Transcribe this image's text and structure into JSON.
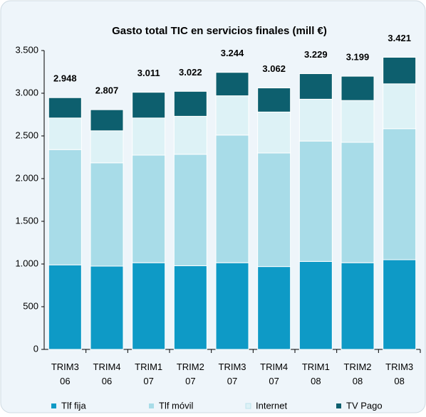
{
  "chart_data": {
    "type": "stacked_bar",
    "title": "Gasto total TIC en servicios finales (mill €)",
    "categories": [
      "TRIM3 06",
      "TRIM4 06",
      "TRIM1 07",
      "TRIM2 07",
      "TRIM3 07",
      "TRIM4 07",
      "TRIM1 08",
      "TRIM2 08",
      "TRIM3 08"
    ],
    "series": [
      {
        "name": "Tlf fija",
        "color": "#0e9ac6",
        "values": [
          990,
          975,
          1015,
          980,
          1015,
          970,
          1030,
          1015,
          1050
        ]
      },
      {
        "name": "Tlf móvil",
        "color": "#a8dce8",
        "values": [
          1350,
          1210,
          1260,
          1305,
          1495,
          1330,
          1410,
          1410,
          1535
        ]
      },
      {
        "name": "Internet",
        "color": "#ddf2f6",
        "values": [
          370,
          375,
          435,
          445,
          460,
          480,
          490,
          490,
          525
        ]
      },
      {
        "name": "TV Pago",
        "color": "#0d5f6e",
        "values": [
          238,
          247,
          301,
          292,
          274,
          282,
          299,
          284,
          311
        ]
      }
    ],
    "totals": {
      "values": [
        2948,
        2807,
        3011,
        3022,
        3244,
        3062,
        3229,
        3199,
        3421
      ],
      "value_labels": [
        "2.948",
        "2.807",
        "3.011",
        "3.022",
        "3.244",
        "3.062",
        "3.229",
        "3.199",
        "3.421"
      ]
    },
    "ylim": [
      0,
      3500
    ],
    "yticks": [
      0,
      500,
      {
        "value": 1000,
        "label": "1.000"
      },
      {
        "value": 1500,
        "label": "1.500"
      },
      {
        "value": 2000,
        "label": "2.000"
      },
      {
        "value": 2500,
        "label": "2.500"
      },
      {
        "value": 3000,
        "label": "3.000"
      },
      {
        "value": 3500,
        "label": "3.500"
      }
    ],
    "legend": "bottom"
  }
}
